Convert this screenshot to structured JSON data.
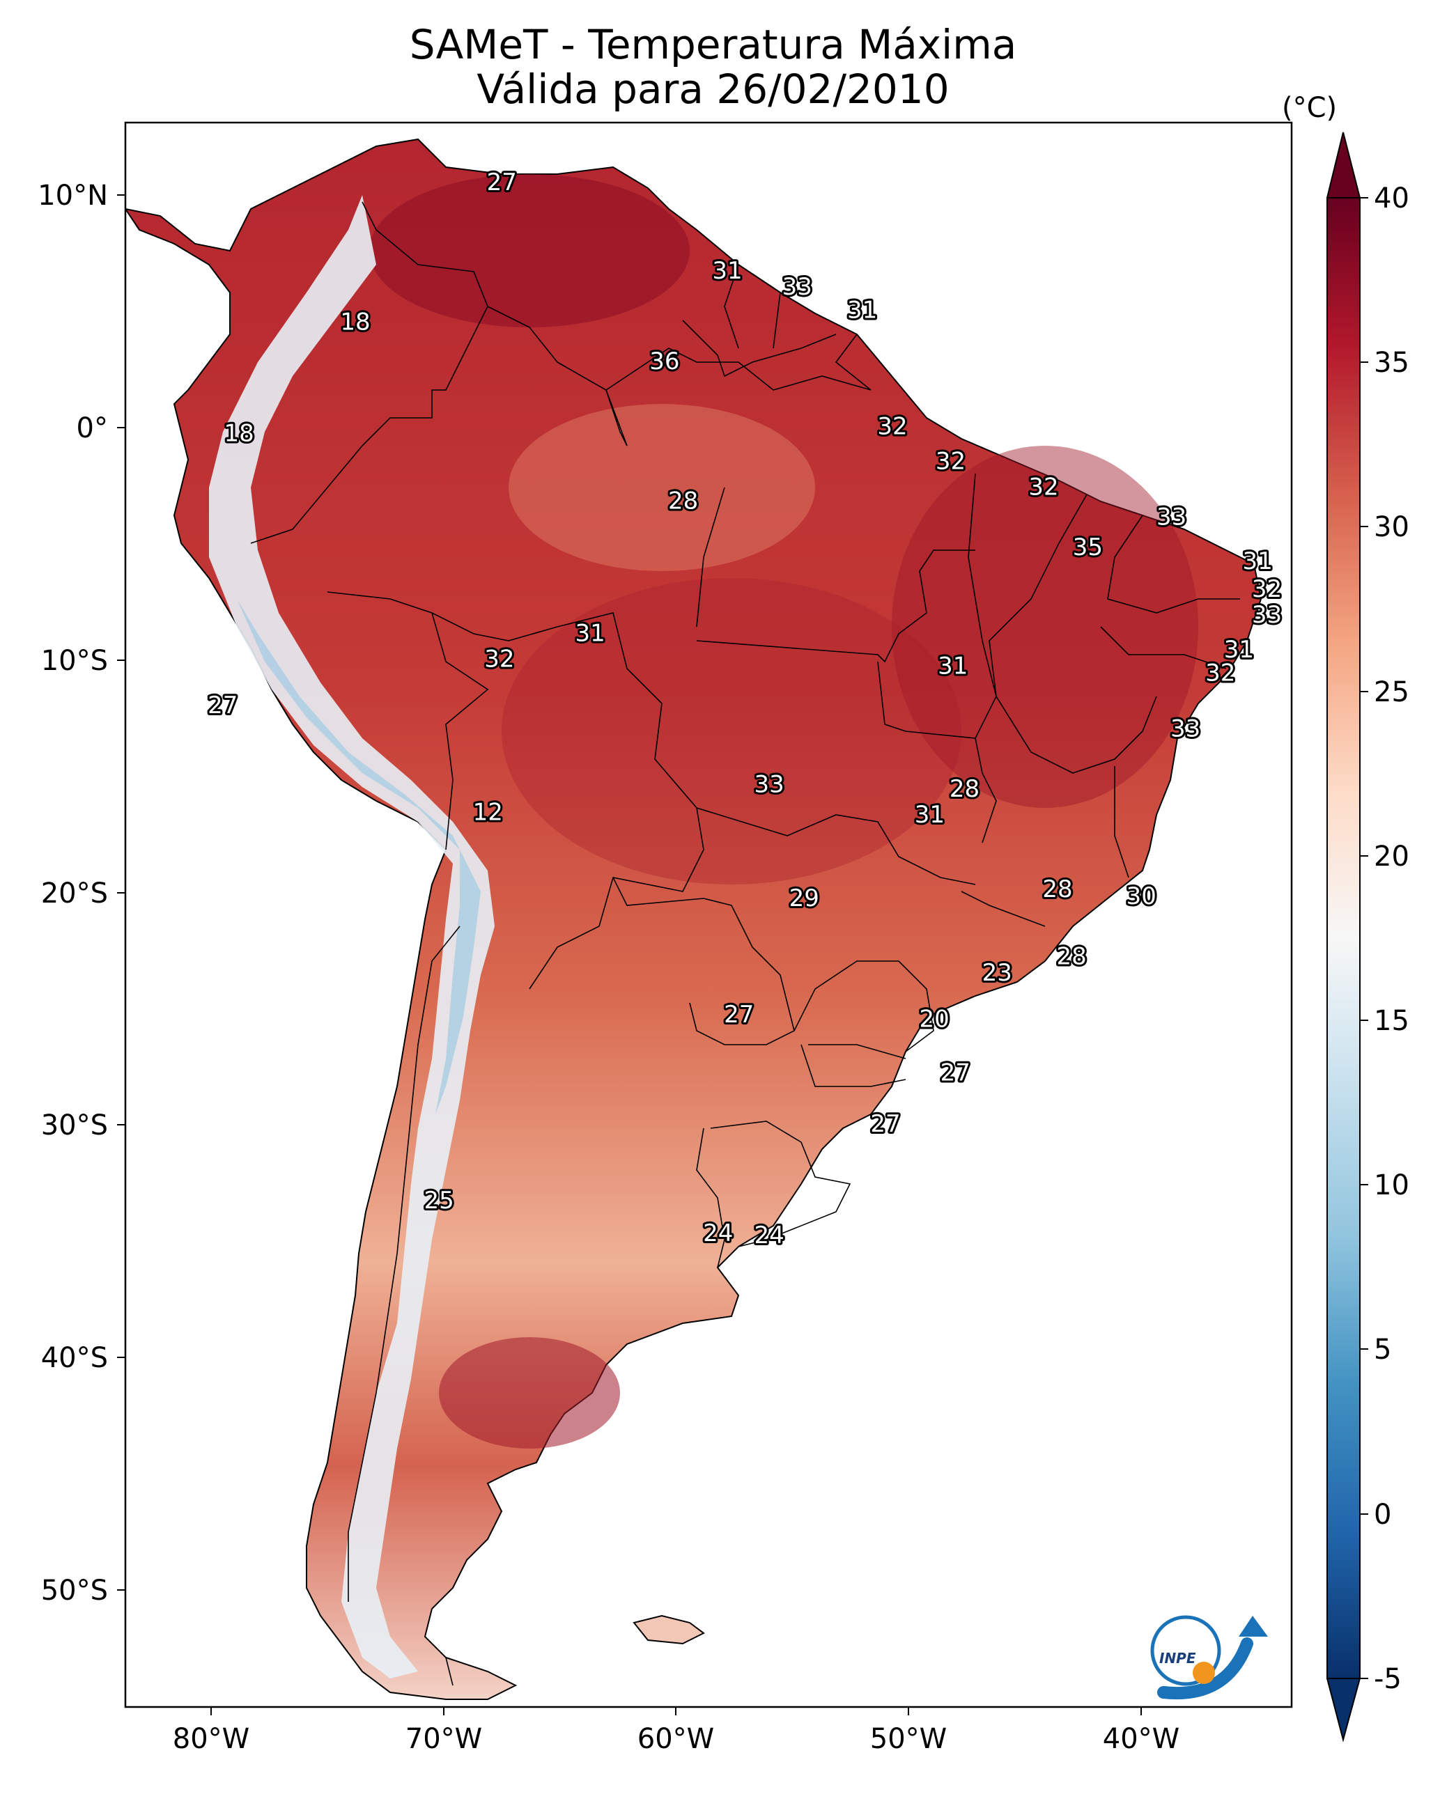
{
  "title_line1": "SAMeT - Temperatura Máxima",
  "title_line2": "Válida para 26/02/2010",
  "colorbar": {
    "unit": "(°C)",
    "ticks": [
      "40",
      "35",
      "30",
      "25",
      "20",
      "15",
      "10",
      "5",
      "0",
      "-5"
    ],
    "min": -5,
    "max": 40,
    "colors": [
      "#08306b",
      "#2166ac",
      "#4393c3",
      "#92c5de",
      "#d1e5f0",
      "#f7f7f7",
      "#fddbc7",
      "#f4a582",
      "#d6604d",
      "#b2182b",
      "#67001f"
    ]
  },
  "axes": {
    "lat_ticks": [
      "10°N",
      "0°",
      "10°S",
      "20°S",
      "30°S",
      "40°S",
      "50°S"
    ],
    "lon_ticks": [
      "80°W",
      "70°W",
      "60°W",
      "50°W",
      "40°W"
    ]
  },
  "logo_text": "INPE",
  "station_labels": [
    {
      "value": "27",
      "lon": -67.5,
      "lat": 10.5
    },
    {
      "value": "31",
      "lon": -57.8,
      "lat": 6.7
    },
    {
      "value": "33",
      "lon": -54.8,
      "lat": 6.0
    },
    {
      "value": "31",
      "lon": -52.0,
      "lat": 5.0
    },
    {
      "value": "36",
      "lon": -60.5,
      "lat": 2.8
    },
    {
      "value": "18",
      "lon": -73.8,
      "lat": 4.5
    },
    {
      "value": "18",
      "lon": -78.8,
      "lat": -0.3
    },
    {
      "value": "32",
      "lon": -50.7,
      "lat": 0.0
    },
    {
      "value": "32",
      "lon": -48.2,
      "lat": -1.5
    },
    {
      "value": "32",
      "lon": -44.2,
      "lat": -2.6
    },
    {
      "value": "33",
      "lon": -38.7,
      "lat": -3.9
    },
    {
      "value": "35",
      "lon": -42.3,
      "lat": -5.2
    },
    {
      "value": "28",
      "lon": -59.7,
      "lat": -3.2
    },
    {
      "value": "31",
      "lon": -35.0,
      "lat": -5.8
    },
    {
      "value": "32",
      "lon": -34.6,
      "lat": -7.0
    },
    {
      "value": "33",
      "lon": -34.6,
      "lat": -8.1
    },
    {
      "value": "31",
      "lon": -35.8,
      "lat": -9.6
    },
    {
      "value": "32",
      "lon": -36.6,
      "lat": -10.6
    },
    {
      "value": "33",
      "lon": -38.1,
      "lat": -13.0
    },
    {
      "value": "31",
      "lon": -63.7,
      "lat": -8.9
    },
    {
      "value": "32",
      "lon": -67.6,
      "lat": -10.0
    },
    {
      "value": "31",
      "lon": -48.1,
      "lat": -10.3
    },
    {
      "value": "27",
      "lon": -79.5,
      "lat": -12.0
    },
    {
      "value": "12",
      "lon": -68.1,
      "lat": -16.6
    },
    {
      "value": "33",
      "lon": -56.0,
      "lat": -15.4
    },
    {
      "value": "28",
      "lon": -47.6,
      "lat": -15.6
    },
    {
      "value": "31",
      "lon": -49.1,
      "lat": -16.7
    },
    {
      "value": "28",
      "lon": -43.6,
      "lat": -19.9
    },
    {
      "value": "30",
      "lon": -40.0,
      "lat": -20.2
    },
    {
      "value": "29",
      "lon": -54.5,
      "lat": -20.3
    },
    {
      "value": "28",
      "lon": -43.0,
      "lat": -22.8
    },
    {
      "value": "23",
      "lon": -46.2,
      "lat": -23.5
    },
    {
      "value": "27",
      "lon": -57.3,
      "lat": -25.3
    },
    {
      "value": "20",
      "lon": -48.9,
      "lat": -25.5
    },
    {
      "value": "27",
      "lon": -48.0,
      "lat": -27.8
    },
    {
      "value": "27",
      "lon": -51.0,
      "lat": -30.0
    },
    {
      "value": "25",
      "lon": -70.2,
      "lat": -33.3
    },
    {
      "value": "24",
      "lon": -58.2,
      "lat": -34.7
    },
    {
      "value": "24",
      "lon": -56.0,
      "lat": -34.8
    }
  ]
}
